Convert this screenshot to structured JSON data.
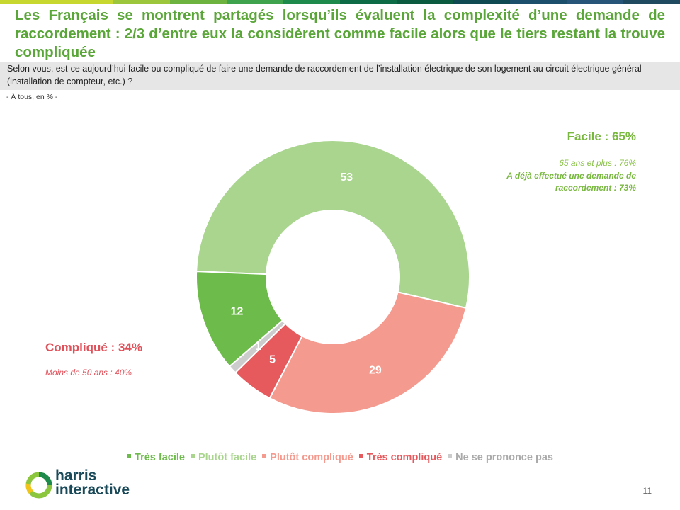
{
  "title": "Les Français se montrent partagés lorsqu’ils évaluent la complexité d’une demande de raccordement : 2/3 d’entre eux la considèrent comme facile alors que le tiers restant la trouve compliquée",
  "question": "Selon vous, est-ce aujourd’hui facile ou compliqué de faire une demande de raccordement de l’installation électrique de son logement au circuit électrique général (installation de compteur, etc.) ?",
  "base": "- À tous, en % -",
  "facile": {
    "title": "Facile : 65%",
    "sub1": "65 ans et plus : 76%",
    "sub2": "A déjà effectué une demande de raccordement : 73%"
  },
  "complique": {
    "title": "Compliqué : 34%",
    "sub": "Moins de 50 ans : 40%"
  },
  "chart_data": {
    "type": "pie",
    "variant": "donut",
    "categories": [
      "Très facile",
      "Plutôt facile",
      "Plutôt compliqué",
      "Très compliqué",
      "Ne se prononce pas"
    ],
    "values": [
      12,
      53,
      29,
      5,
      1
    ],
    "colors": [
      "#6dbb4a",
      "#a9d58f",
      "#f49a8e",
      "#e65a5e",
      "#cccccc"
    ],
    "legend_text_colors": [
      "#6dbb4a",
      "#a9d58f",
      "#f49a8e",
      "#e65a5e",
      "#aaaaaa"
    ],
    "start": "top-left, clockwise from Plutôt facile",
    "legend_position": "bottom"
  },
  "top_bar_colors": [
    "#c8d630",
    "#c8d630",
    "#9cc63b",
    "#6cb33f",
    "#3fa34d",
    "#1e8a4c",
    "#0d6b45",
    "#0a5b3f",
    "#0f4a52",
    "#1b4f6b",
    "#27557a",
    "#1f4a60"
  ],
  "logo": {
    "line1": "harris",
    "line2": "interactive",
    "icon": "harris-ring-logo"
  },
  "page_number": "11"
}
